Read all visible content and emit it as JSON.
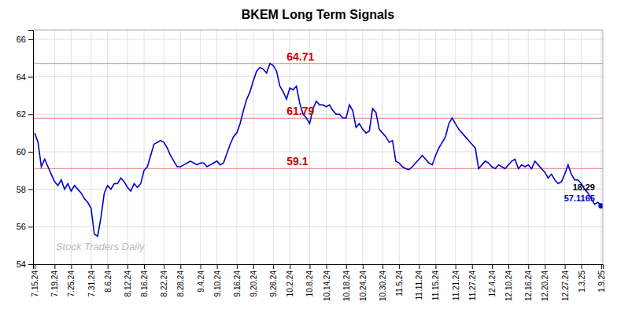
{
  "chart_data": {
    "type": "line",
    "title": "BKEM Long Term Signals",
    "color": "#0000cc",
    "grid": true,
    "ylim": [
      54,
      66.5
    ],
    "yticks": [
      54,
      56,
      58,
      60,
      62,
      64,
      66
    ],
    "reference_lines": [
      {
        "value": 64.71,
        "label": "64.71",
        "color": "#cc0000"
      },
      {
        "value": 61.79,
        "label": "61.79",
        "color": "#cc0000"
      },
      {
        "value": 59.1,
        "label": "59.1",
        "color": "#cc0000"
      }
    ],
    "last_point_label": "18:29",
    "watermark": "Stock Traders Daily",
    "categories": [
      "7.15.24",
      null,
      null,
      null,
      null,
      null,
      "7.19.24",
      null,
      null,
      null,
      null,
      "7.25.24",
      null,
      null,
      null,
      null,
      null,
      "7.31.24",
      null,
      null,
      null,
      null,
      "8.6.24",
      null,
      null,
      null,
      null,
      null,
      "8.12.24",
      null,
      null,
      null,
      null,
      "8.16.24",
      null,
      null,
      null,
      null,
      null,
      "8.22.24",
      null,
      null,
      null,
      null,
      "8.28.24",
      null,
      null,
      null,
      null,
      null,
      "9.4.24",
      null,
      null,
      null,
      null,
      "9.10.24",
      null,
      null,
      null,
      null,
      null,
      "9.16.24",
      null,
      null,
      null,
      null,
      "9.20.24",
      null,
      null,
      null,
      null,
      null,
      "9.26.24",
      null,
      null,
      null,
      null,
      "10.2.24",
      null,
      null,
      null,
      null,
      null,
      "10.8.24",
      null,
      null,
      null,
      null,
      "10.14.24",
      null,
      null,
      null,
      null,
      null,
      "10.18.24",
      null,
      null,
      null,
      null,
      "10.24.24",
      null,
      null,
      null,
      null,
      null,
      "10.30.24",
      null,
      null,
      null,
      null,
      "11.5.24",
      null,
      null,
      null,
      null,
      null,
      "11.11.24",
      null,
      null,
      null,
      null,
      "11.15.24",
      null,
      null,
      null,
      null,
      null,
      "11.21.24",
      null,
      null,
      null,
      null,
      "11.27.24",
      null,
      null,
      null,
      null,
      null,
      "12.4.24",
      null,
      null,
      null,
      null,
      "12.10.24",
      null,
      null,
      null,
      null,
      null,
      "12.16.24",
      null,
      null,
      null,
      null,
      "12.20.24",
      null,
      null,
      null,
      null,
      null,
      "12.27.24",
      null,
      null,
      null,
      null,
      "1.3.25",
      null,
      null,
      null,
      null,
      null,
      "1.9.25"
    ],
    "values": [
      61.0,
      60.5,
      59.2,
      59.6,
      59.2,
      58.8,
      58.4,
      58.2,
      58.5,
      58.0,
      58.3,
      57.9,
      58.2,
      58.0,
      57.8,
      57.5,
      57.3,
      57.0,
      55.6,
      55.5,
      56.5,
      57.8,
      58.2,
      58.0,
      58.3,
      58.3,
      58.6,
      58.4,
      58.1,
      57.9,
      58.3,
      58.1,
      58.3,
      59.0,
      59.2,
      59.8,
      60.4,
      60.5,
      60.6,
      60.5,
      60.2,
      59.8,
      59.5,
      59.2,
      59.2,
      59.3,
      59.4,
      59.5,
      59.4,
      59.3,
      59.4,
      59.4,
      59.2,
      59.3,
      59.4,
      59.5,
      59.3,
      59.4,
      59.9,
      60.4,
      60.8,
      61.0,
      61.5,
      62.2,
      62.8,
      63.2,
      63.8,
      64.3,
      64.5,
      64.4,
      64.2,
      64.71,
      64.6,
      64.3,
      63.5,
      63.2,
      62.8,
      63.4,
      63.3,
      63.5,
      62.6,
      62.0,
      61.8,
      61.5,
      62.3,
      62.7,
      62.5,
      62.5,
      62.4,
      62.5,
      62.2,
      62.0,
      62.0,
      61.8,
      61.8,
      62.5,
      62.2,
      61.3,
      61.5,
      61.2,
      61.0,
      61.1,
      62.3,
      62.1,
      61.2,
      61.0,
      60.8,
      60.5,
      60.6,
      59.5,
      59.4,
      59.2,
      59.1,
      59.05,
      59.2,
      59.4,
      59.6,
      59.8,
      59.6,
      59.4,
      59.3,
      59.8,
      60.2,
      60.5,
      60.8,
      61.5,
      61.8,
      61.5,
      61.2,
      61.0,
      60.8,
      60.6,
      60.4,
      60.2,
      59.1,
      59.3,
      59.5,
      59.4,
      59.2,
      59.1,
      59.3,
      59.2,
      59.1,
      59.3,
      59.5,
      59.6,
      59.1,
      59.3,
      59.2,
      59.3,
      59.1,
      59.5,
      59.3,
      59.1,
      58.9,
      58.6,
      58.8,
      58.5,
      58.3,
      58.4,
      58.8,
      59.3,
      58.8,
      58.5,
      58.5,
      58.3,
      58.0,
      57.8,
      57.5,
      57.2,
      57.3,
      57.1165
    ]
  }
}
